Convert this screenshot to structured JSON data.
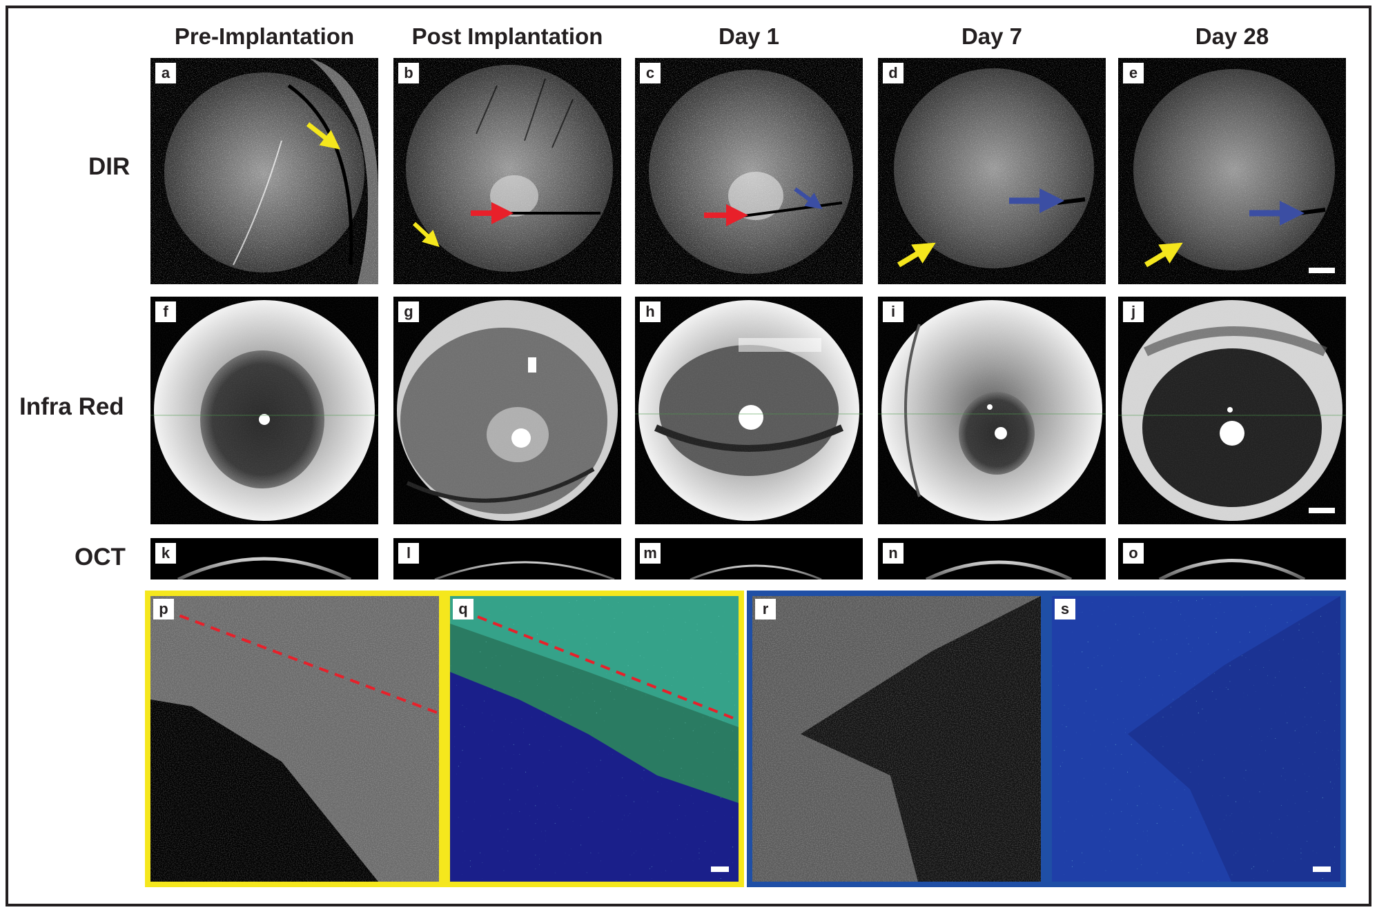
{
  "columns": [
    "Pre-Implantation",
    "Post Implantation",
    "Day 1",
    "Day 7",
    "Day 28"
  ],
  "rows": [
    "DIR",
    "Infra Red",
    "OCT"
  ],
  "panel_labels": {
    "a": "a",
    "b": "b",
    "c": "c",
    "d": "d",
    "e": "e",
    "f": "f",
    "g": "g",
    "h": "h",
    "i": "i",
    "j": "j",
    "k": "k",
    "l": "l",
    "m": "m",
    "n": "n",
    "o": "o",
    "p": "p",
    "q": "q",
    "r": "r",
    "s": "s"
  },
  "colors": {
    "frame": "#231f20",
    "yellow_arrow": "#f5e71d",
    "red_arrow": "#e8202a",
    "blue_arrow": "#3b4ea3",
    "yellow_border": "#f5e71d",
    "blue_border": "#1f4fa6",
    "dashed_line": "#e8202a"
  }
}
